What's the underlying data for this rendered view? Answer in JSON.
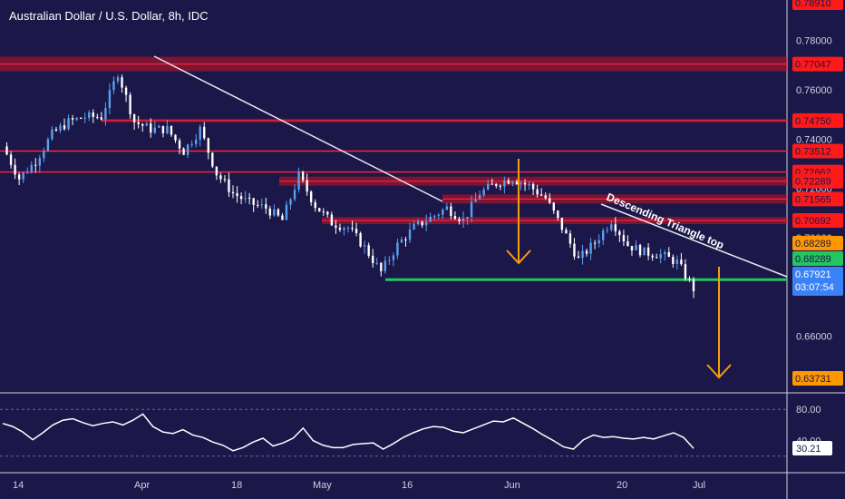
{
  "header": {
    "title": "Australian Dollar / U.S. Dollar, 8h, IDC"
  },
  "annotations": {
    "pattern_label": "Descending Triangle top"
  },
  "colors": {
    "background": "#1b1748",
    "resistance": "#d01020",
    "support": "#22c55e",
    "arrow": "#f59e0b",
    "candle": "#4a90e2",
    "current_price": "#3b82f6"
  },
  "chart_data": [
    {
      "type": "candlestick",
      "title": "Australian Dollar / U.S. Dollar, 8h, IDC",
      "ylim": [
        0.6373,
        0.7891
      ],
      "y_ticks": [
        "0.78000",
        "0.76000",
        "0.74000",
        "0.72000",
        "0.70000",
        "0.66000"
      ],
      "x_ticks": [
        "14",
        "Apr",
        "18",
        "May",
        "16",
        "Jun",
        "20",
        "Jul"
      ],
      "close_path": [
        [
          "14",
          0.737
        ],
        [
          "",
          0.724
        ],
        [
          "",
          0.731
        ],
        [
          "",
          0.742
        ],
        [
          "",
          0.747
        ],
        [
          "",
          0.749
        ],
        [
          "Apr",
          0.749
        ],
        [
          "",
          0.767
        ],
        [
          "",
          0.747
        ],
        [
          "",
          0.744
        ],
        [
          "",
          0.744
        ],
        [
          "18",
          0.735
        ],
        [
          "",
          0.744
        ],
        [
          "",
          0.726
        ],
        [
          "",
          0.718
        ],
        [
          "",
          0.714
        ],
        [
          "",
          0.712
        ],
        [
          "May",
          0.707
        ],
        [
          "",
          0.725
        ],
        [
          "",
          0.713
        ],
        [
          "",
          0.706
        ],
        [
          "",
          0.704
        ],
        [
          "",
          0.696
        ],
        [
          "16",
          0.686
        ],
        [
          "",
          0.697
        ],
        [
          "",
          0.704
        ],
        [
          "",
          0.708
        ],
        [
          "",
          0.712
        ],
        [
          "",
          0.707
        ],
        [
          "",
          0.718
        ],
        [
          "Jun",
          0.722
        ],
        [
          "",
          0.724
        ],
        [
          "",
          0.721
        ],
        [
          "",
          0.716
        ],
        [
          "",
          0.704
        ],
        [
          "",
          0.691
        ],
        [
          "",
          0.698
        ],
        [
          "",
          0.707
        ],
        [
          "20",
          0.697
        ],
        [
          "",
          0.694
        ],
        [
          "",
          0.693
        ],
        [
          "",
          0.69
        ],
        [
          "",
          0.6792
        ]
      ],
      "price_levels": [
        {
          "value": "0.78910",
          "style": "resistance"
        },
        {
          "value": "0.77047",
          "style": "resistance"
        },
        {
          "value": "0.74750",
          "style": "resistance"
        },
        {
          "value": "0.73512",
          "style": "resistance"
        },
        {
          "value": "0.72662",
          "style": "resistance"
        },
        {
          "value": "0.72289",
          "style": "resistance"
        },
        {
          "value": "0.71565",
          "style": "resistance"
        },
        {
          "value": "0.70692",
          "style": "resistance"
        },
        {
          "value": "0.68289",
          "style": "orange"
        },
        {
          "value": "0.68289",
          "style": "support"
        },
        {
          "value": "0.63731",
          "style": "orange"
        }
      ],
      "last_price": "0.67921",
      "countdown": "03:07:54",
      "pattern": "Descending Triangle top"
    },
    {
      "type": "line",
      "name": "oscillator",
      "ylim": [
        0,
        100
      ],
      "y_ticks": [
        "80.00",
        "40.00"
      ],
      "last_value": "30.21",
      "values": [
        62,
        58,
        51,
        41,
        50,
        60,
        66,
        68,
        63,
        59,
        62,
        64,
        60,
        66,
        74,
        58,
        51,
        49,
        54,
        47,
        44,
        38,
        34,
        27,
        31,
        38,
        43,
        33,
        37,
        43,
        56,
        40,
        34,
        31,
        31,
        35,
        36,
        37,
        29,
        36,
        44,
        50,
        55,
        58,
        57,
        52,
        50,
        55,
        60,
        65,
        64,
        69,
        62,
        55,
        47,
        40,
        32,
        29,
        41,
        47,
        44,
        45,
        43,
        42,
        44,
        42,
        46,
        50,
        44,
        30
      ]
    }
  ]
}
